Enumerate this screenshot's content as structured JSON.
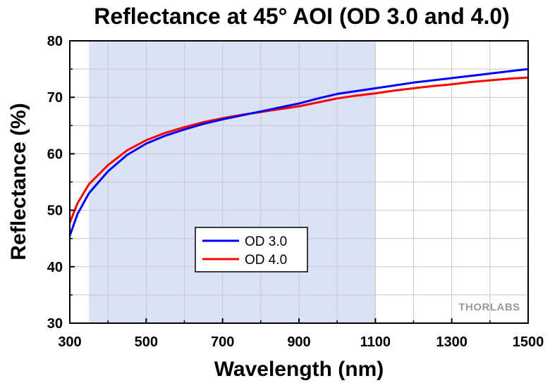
{
  "chart_data": {
    "type": "line",
    "title": "Reflectance at 45° AOI (OD 3.0 and 4.0)",
    "xlabel": "Wavelength (nm)",
    "ylabel": "Reflectance (%)",
    "xlim": [
      300,
      1500
    ],
    "ylim": [
      30,
      80
    ],
    "xticks": [
      300,
      500,
      700,
      900,
      1100,
      1300,
      1500
    ],
    "yticks": [
      30,
      40,
      50,
      60,
      70,
      80
    ],
    "grid": true,
    "legend_position": "center-left",
    "shaded_region": {
      "x_range": [
        350,
        1100
      ],
      "color": "#dae3f5"
    },
    "watermark": "THORLABS",
    "series": [
      {
        "name": "OD 3.0",
        "color": "#0000ff",
        "x": [
          300,
          320,
          350,
          400,
          450,
          500,
          550,
          600,
          650,
          700,
          750,
          800,
          850,
          900,
          950,
          1000,
          1050,
          1100,
          1150,
          1200,
          1250,
          1300,
          1350,
          1400,
          1450,
          1500
        ],
        "y": [
          45.5,
          49.3,
          53.0,
          56.9,
          59.8,
          61.8,
          63.2,
          64.3,
          65.3,
          66.1,
          66.8,
          67.5,
          68.2,
          68.9,
          69.8,
          70.6,
          71.1,
          71.6,
          72.1,
          72.6,
          73.0,
          73.4,
          73.8,
          74.2,
          74.6,
          75.0
        ]
      },
      {
        "name": "OD 4.0",
        "color": "#ff0000",
        "x": [
          300,
          320,
          350,
          400,
          450,
          500,
          550,
          600,
          650,
          700,
          750,
          800,
          850,
          900,
          950,
          1000,
          1050,
          1100,
          1150,
          1200,
          1250,
          1300,
          1350,
          1400,
          1450,
          1500
        ],
        "y": [
          47.8,
          51.2,
          54.6,
          58.0,
          60.6,
          62.4,
          63.7,
          64.7,
          65.6,
          66.3,
          66.9,
          67.4,
          67.9,
          68.4,
          69.1,
          69.8,
          70.3,
          70.7,
          71.2,
          71.6,
          72.0,
          72.3,
          72.7,
          73.0,
          73.3,
          73.5
        ]
      }
    ]
  }
}
